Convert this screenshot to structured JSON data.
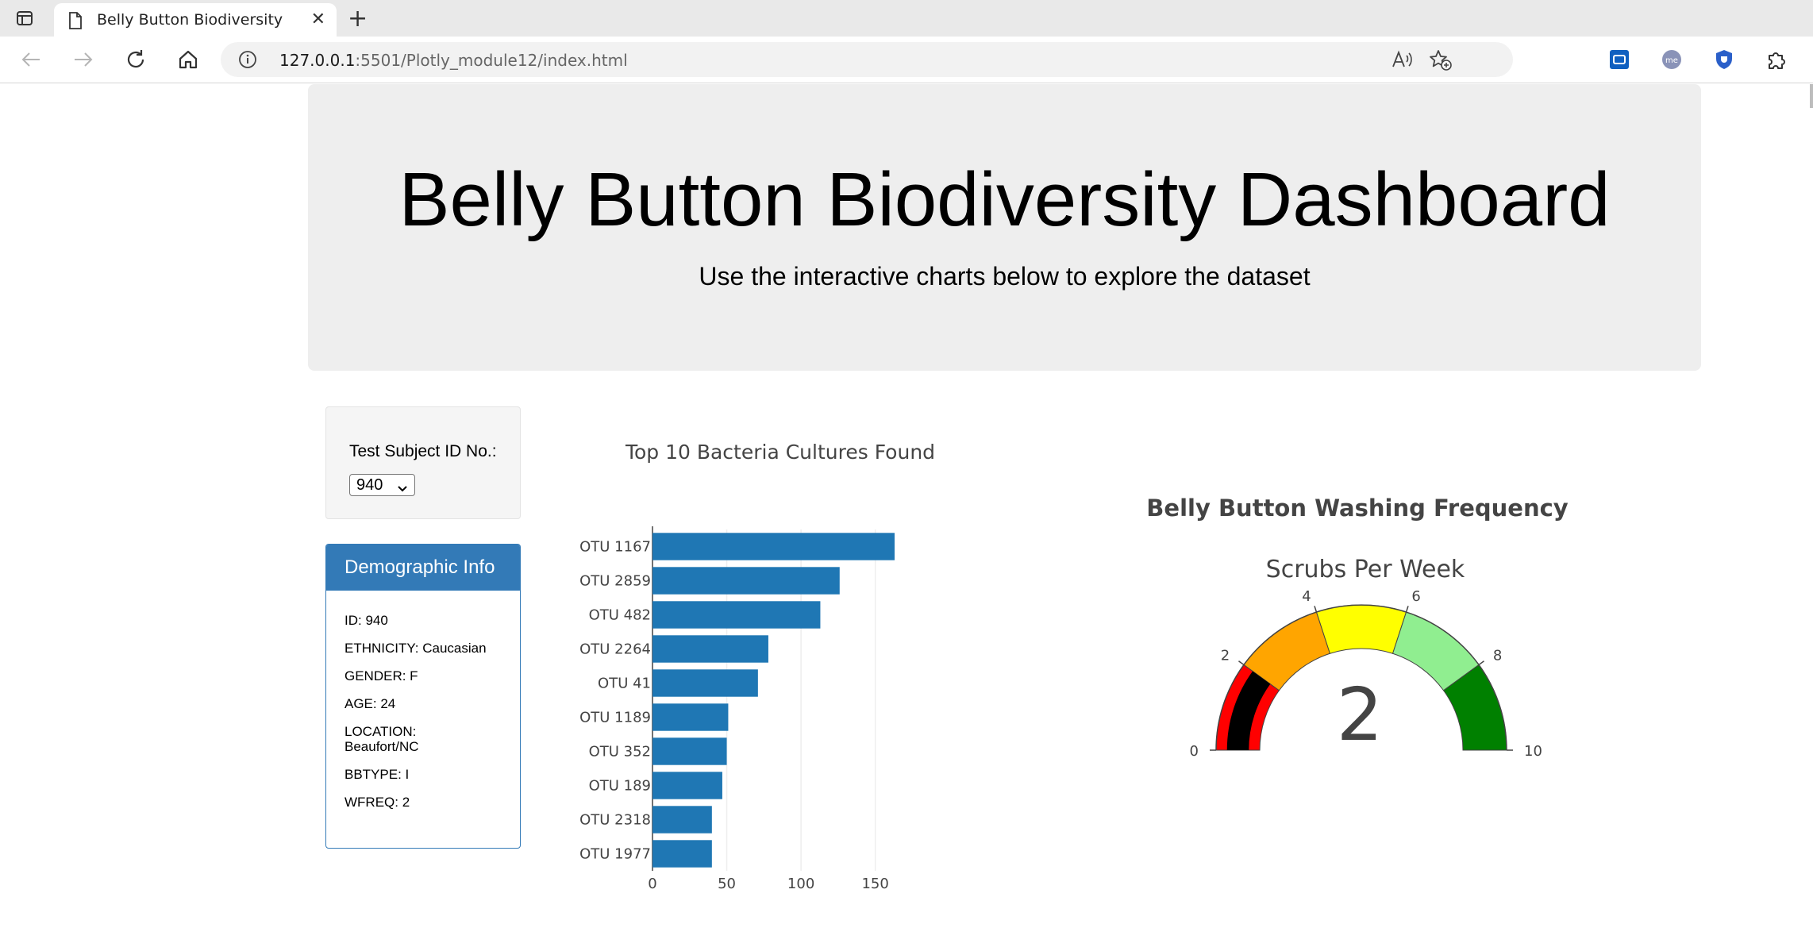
{
  "browser": {
    "tab_title": "Belly Button Biodiversity",
    "url_host": "127.0.0.1",
    "url_rest": ":5501/Plotly_module12/index.html"
  },
  "header": {
    "title": "Belly Button Biodiversity Dashboard",
    "subtitle": "Use the interactive charts below to explore the dataset"
  },
  "selector": {
    "label": "Test Subject ID No.:",
    "selected": "940"
  },
  "demographics": {
    "heading": "Demographic Info",
    "rows": [
      "ID: 940",
      "ETHNICITY: Caucasian",
      "GENDER: F",
      "AGE: 24",
      "LOCATION: Beaufort/NC",
      "BBTYPE: I",
      "WFREQ: 2"
    ]
  },
  "chart_data": [
    {
      "type": "bar",
      "orientation": "horizontal",
      "title": "Top 10 Bacteria Cultures Found",
      "categories": [
        "OTU 1167",
        "OTU 2859",
        "OTU 482",
        "OTU 2264",
        "OTU 41",
        "OTU 1189",
        "OTU 352",
        "OTU 189",
        "OTU 2318",
        "OTU 1977"
      ],
      "values": [
        163,
        126,
        113,
        78,
        71,
        51,
        50,
        47,
        40,
        40
      ],
      "xlim": [
        0,
        163
      ],
      "xticks": [
        0,
        50,
        100,
        150
      ],
      "color": "#1f77b4",
      "grid": true
    },
    {
      "type": "gauge",
      "title": "Belly Button Washing Frequency",
      "subtitle": "Scrubs Per Week",
      "value": 2,
      "range": [
        0,
        10
      ],
      "ticks": [
        0,
        2,
        4,
        6,
        8,
        10
      ],
      "steps": [
        {
          "range": [
            0,
            2
          ],
          "color": "#ff0000"
        },
        {
          "range": [
            2,
            4
          ],
          "color": "#ffa500"
        },
        {
          "range": [
            4,
            6
          ],
          "color": "#ffff00"
        },
        {
          "range": [
            6,
            8
          ],
          "color": "#90ee90"
        },
        {
          "range": [
            8,
            10
          ],
          "color": "#008000"
        }
      ],
      "bar_color": "#000000"
    }
  ]
}
